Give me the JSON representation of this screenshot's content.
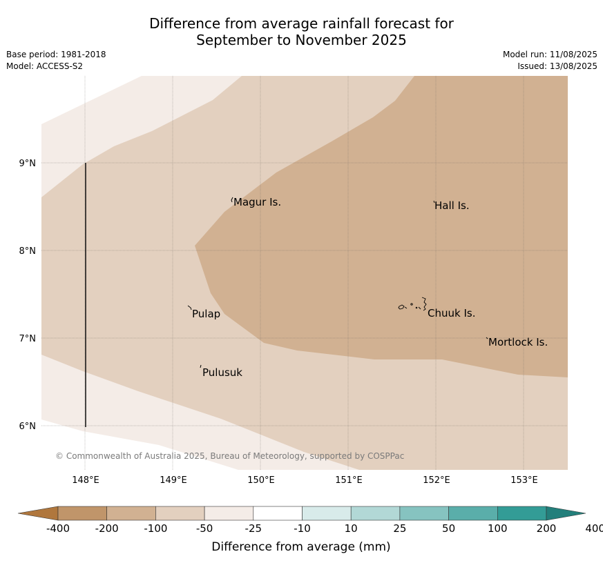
{
  "title_line1": "Difference from average rainfall forecast for",
  "title_line2": "September to November 2025",
  "base_period": "Base period: 1981-2018",
  "model": "Model: ACCESS-S2",
  "model_run": "Model run: 11/08/2025",
  "issued": "Issued: 13/08/2025",
  "copyright": "© Commonwealth of Australia 2025, Bureau of Meteorology, supported by COSPPac",
  "lon_ticks": [
    "148°E",
    "149°E",
    "150°E",
    "151°E",
    "152°E",
    "153°E"
  ],
  "lat_ticks": [
    "9°N",
    "8°N",
    "7°N",
    "6°N"
  ],
  "places": {
    "magur": "Magur Is.",
    "hall": "Hall Is.",
    "pulap": "Pulap",
    "chuuk": "Chuuk Is.",
    "mortlock": "Mortlock Is.",
    "pulusuk": "Pulusuk"
  },
  "colorbar": {
    "labels": [
      "-400",
      "-200",
      "-100",
      "-50",
      "-25",
      "-10",
      "10",
      "25",
      "50",
      "100",
      "200",
      "400"
    ],
    "colors": [
      "#b0773d",
      "#c0956a",
      "#d1b192",
      "#e3d0bf",
      "#f4ece7",
      "#ffffff",
      "#d8ebea",
      "#b2d8d6",
      "#86c3c0",
      "#5aaeaa",
      "#339c96",
      "#237f7b"
    ],
    "label": "Difference from average (mm)"
  },
  "colors": {
    "band_m25": "#f4ece7",
    "band_m50": "#e3d0bf",
    "band_m100": "#d1b192"
  }
}
